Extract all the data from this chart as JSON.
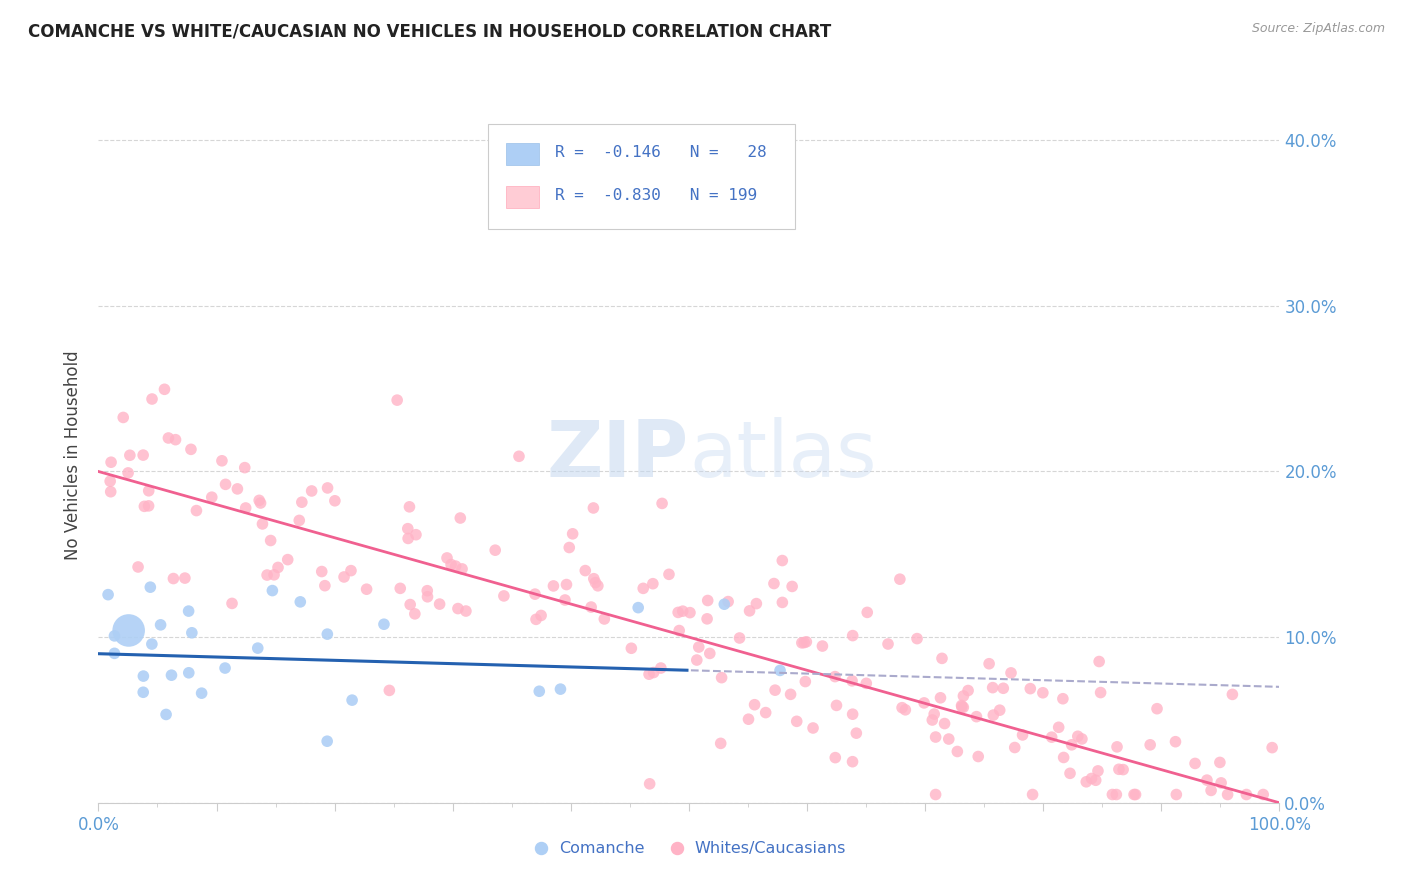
{
  "title": "COMANCHE VS WHITE/CAUCASIAN NO VEHICLES IN HOUSEHOLD CORRELATION CHART",
  "source": "Source: ZipAtlas.com",
  "ylabel": "No Vehicles in Household",
  "legend_label1": "Comanche",
  "legend_label2": "Whites/Caucasians",
  "title_color": "#222222",
  "tick_color": "#5b9bd5",
  "blue_scatter_color": "#aecff5",
  "pink_scatter_color": "#ffb3c6",
  "blue_line_color": "#2461b0",
  "pink_line_color": "#f06090",
  "dashed_line_color": "#aaaacc",
  "watermark_zip_color": "#c5d8f0",
  "watermark_atlas_color": "#c5d8f0",
  "background_color": "#ffffff",
  "grid_color": "#cccccc",
  "border_color": "#cccccc",
  "blue_n": 28,
  "pink_n": 199,
  "blue_intercept": 0.09,
  "blue_slope": -0.02,
  "pink_intercept": 0.2,
  "pink_slope": -0.2,
  "blue_scatter_seed": 42,
  "pink_scatter_seed": 7,
  "xlim": [
    0.0,
    1.0
  ],
  "ylim": [
    0.0,
    0.42
  ],
  "yticks": [
    0.0,
    0.1,
    0.2,
    0.3,
    0.4
  ],
  "ytick_labels": [
    "0.0%",
    "10.0%",
    "20.0%",
    "30.0%",
    "40.0%"
  ]
}
